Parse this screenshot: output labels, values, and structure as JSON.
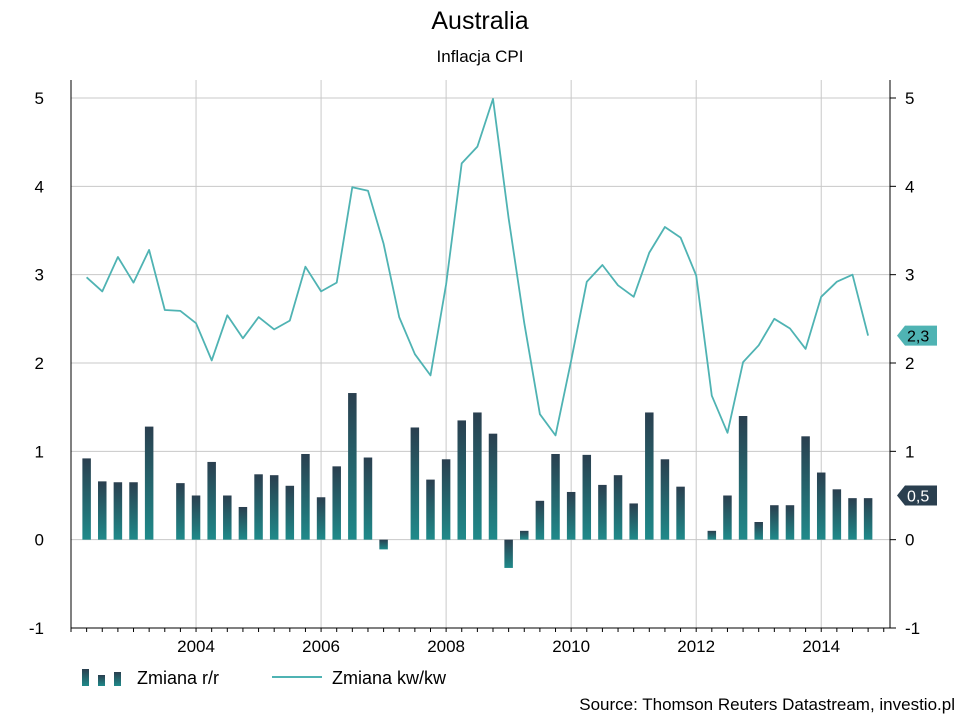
{
  "chart_data": {
    "type": "bar+line",
    "title": "Australia",
    "subtitle": "Inflacja CPI",
    "source": "Source: Thomson Reuters Datastream, investio.pl",
    "ylim": [
      -1,
      5
    ],
    "yticks": [
      -1,
      0,
      1,
      2,
      3,
      4,
      5
    ],
    "x_range": [
      2002.0,
      2015.1
    ],
    "xticks": [
      2004,
      2006,
      2008,
      2010,
      2012,
      2014
    ],
    "grid": true,
    "legend_position": "bottom-left",
    "colors": {
      "bars": "#1f8a8a",
      "bars_dark": "#2a3f4f",
      "line": "#4fb3b3",
      "grid": "#c8c8c8"
    },
    "series": [
      {
        "name": "Zmiana r/r",
        "kind": "bar",
        "x": [
          2002.25,
          2002.5,
          2002.75,
          2003.0,
          2003.25,
          2003.75,
          2004.0,
          2004.25,
          2004.5,
          2004.75,
          2005.0,
          2005.25,
          2005.5,
          2005.75,
          2006.0,
          2006.25,
          2006.5,
          2006.75,
          2007.0,
          2007.5,
          2007.75,
          2008.0,
          2008.25,
          2008.5,
          2008.75,
          2009.0,
          2009.25,
          2009.5,
          2009.75,
          2010.0,
          2010.25,
          2010.5,
          2010.75,
          2011.0,
          2011.25,
          2011.5,
          2011.75,
          2012.25,
          2012.5,
          2012.75,
          2013.0,
          2013.25,
          2013.5,
          2013.75,
          2014.0,
          2014.25,
          2014.5,
          2014.75
        ],
        "values": [
          0.92,
          0.66,
          0.65,
          0.65,
          1.28,
          0.64,
          0.5,
          0.88,
          0.5,
          0.37,
          0.74,
          0.73,
          0.61,
          0.97,
          0.48,
          0.83,
          1.66,
          0.93,
          -0.11,
          1.27,
          0.68,
          0.91,
          1.35,
          1.44,
          1.2,
          -0.32,
          0.1,
          0.44,
          0.97,
          0.54,
          0.96,
          0.62,
          0.73,
          0.41,
          1.44,
          0.91,
          0.6,
          0.1,
          0.5,
          1.4,
          0.2,
          0.39,
          0.39,
          1.17,
          0.76,
          0.57,
          0.47,
          0.47
        ]
      },
      {
        "name": "Zmiana kw/kw",
        "kind": "line",
        "x": [
          2002.25,
          2002.5,
          2002.75,
          2003.0,
          2003.25,
          2003.5,
          2003.75,
          2004.0,
          2004.25,
          2004.5,
          2004.75,
          2005.0,
          2005.25,
          2005.5,
          2005.75,
          2006.0,
          2006.25,
          2006.5,
          2006.75,
          2007.0,
          2007.25,
          2007.5,
          2007.75,
          2008.0,
          2008.25,
          2008.5,
          2008.75,
          2009.0,
          2009.25,
          2009.5,
          2009.75,
          2010.0,
          2010.25,
          2010.5,
          2010.75,
          2011.0,
          2011.25,
          2011.5,
          2011.75,
          2012.0,
          2012.25,
          2012.5,
          2012.75,
          2013.0,
          2013.25,
          2013.5,
          2013.75,
          2014.0,
          2014.25,
          2014.5,
          2014.75
        ],
        "values": [
          2.97,
          2.81,
          3.2,
          2.91,
          3.28,
          2.6,
          2.59,
          2.45,
          2.03,
          2.54,
          2.28,
          2.52,
          2.38,
          2.48,
          3.09,
          2.81,
          2.91,
          3.99,
          3.95,
          3.35,
          2.52,
          2.1,
          1.86,
          2.89,
          4.26,
          4.45,
          4.99,
          3.64,
          2.45,
          1.42,
          1.18,
          2.03,
          2.92,
          3.11,
          2.88,
          2.75,
          3.25,
          3.54,
          3.42,
          2.99,
          1.63,
          1.21,
          2.01,
          2.2,
          2.5,
          2.39,
          2.16,
          2.75,
          2.92,
          3.0,
          2.31
        ]
      }
    ],
    "end_labels": {
      "line": "2,3",
      "bar": "0,5",
      "line_value": 2.31,
      "bar_value": 0.5
    }
  }
}
